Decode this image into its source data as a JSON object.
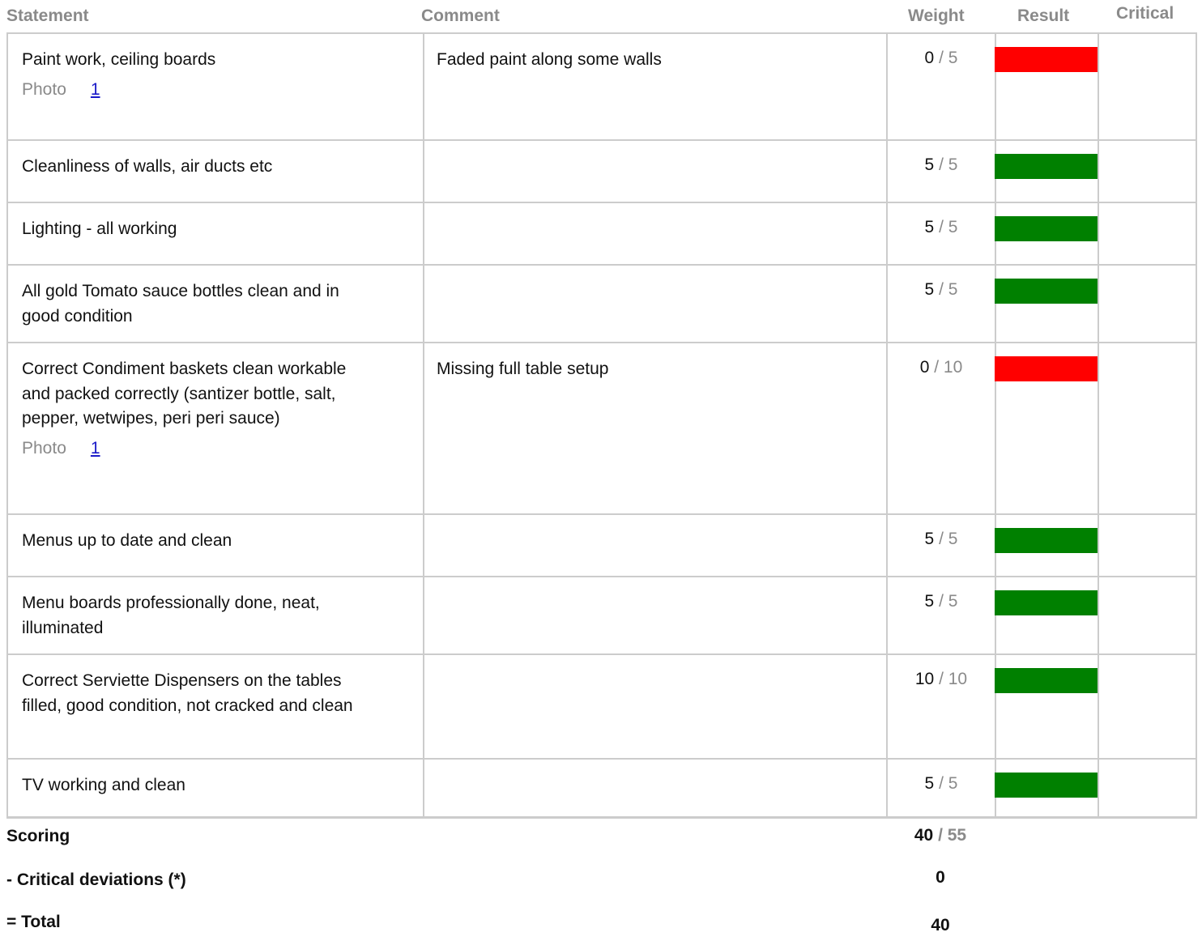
{
  "headers": {
    "statement": "Statement",
    "comment": "Comment",
    "weight": "Weight",
    "result": "Result",
    "critical": "Critical"
  },
  "rows": [
    {
      "statement": "Paint work, ceiling boards",
      "comment": "Faded paint along some walls",
      "score": "0",
      "max": "5",
      "result": "fail",
      "photo": {
        "label": "Photo",
        "link": "1"
      }
    },
    {
      "statement": "Cleanliness of walls, air ducts etc",
      "comment": "",
      "score": "5",
      "max": "5",
      "result": "pass"
    },
    {
      "statement": "Lighting - all working",
      "comment": "",
      "score": "5",
      "max": "5",
      "result": "pass"
    },
    {
      "statement": "All gold Tomato sauce bottles clean and in good condition",
      "comment": "",
      "score": "5",
      "max": "5",
      "result": "pass"
    },
    {
      "statement": "Correct Condiment baskets clean workable and packed correctly (santizer bottle, salt, pepper, wetwipes, peri peri sauce)",
      "comment": "Missing full table setup",
      "score": "0",
      "max": "10",
      "result": "fail",
      "photo": {
        "label": "Photo",
        "link": "1"
      }
    },
    {
      "statement": "Menus up to date and clean",
      "comment": "",
      "score": "5",
      "max": "5",
      "result": "pass"
    },
    {
      "statement": "Menu boards professionally done, neat, illuminated",
      "comment": "",
      "score": "5",
      "max": "5",
      "result": "pass"
    },
    {
      "statement": "Correct Serviette Dispensers on the tables filled, good condition, not cracked and clean",
      "comment": "",
      "score": "10",
      "max": "10",
      "result": "pass"
    },
    {
      "statement": "TV working and clean",
      "comment": "",
      "score": "5",
      "max": "5",
      "result": "pass"
    }
  ],
  "colors": {
    "pass": "#008000",
    "fail": "#ff0000"
  },
  "summary": {
    "scoring_label": "Scoring",
    "scoring_score": "40",
    "scoring_max": "55",
    "critical_label": "- Critical deviations (*)",
    "critical_value": "0",
    "total_label": "= Total",
    "total_value": "40"
  }
}
